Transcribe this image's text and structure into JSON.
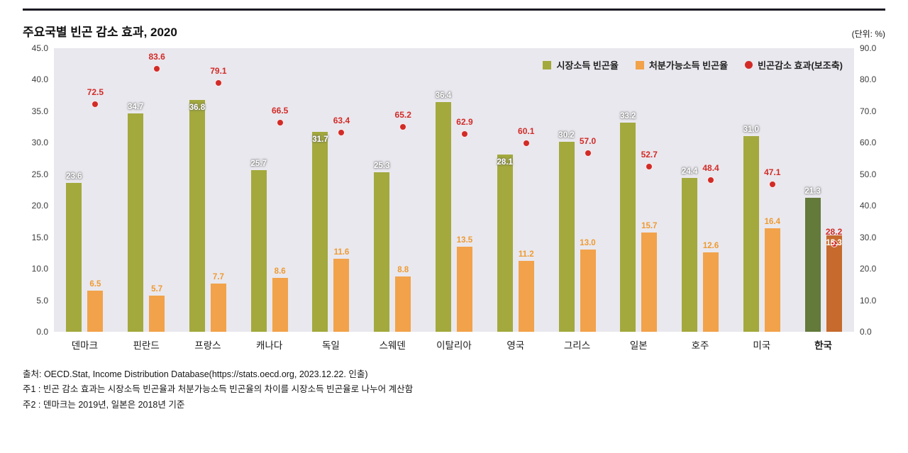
{
  "page": {
    "title": "주요국별 빈곤 감소 효과, 2020",
    "unit_label": "(단위: %)"
  },
  "legend": [
    {
      "label": "시장소득 빈곤율",
      "color": "#a3a93c",
      "shape": "square"
    },
    {
      "label": "처분가능소득 빈곤율",
      "color": "#f2a24a",
      "shape": "square"
    },
    {
      "label": "빈곤감소 효과(보조축)",
      "color": "#d22b27",
      "shape": "circle"
    }
  ],
  "chart_data": {
    "type": "bar",
    "subtype": "grouped-bars-with-scatter-on-secondary-axis",
    "title": "주요국별 빈곤 감소 효과, 2020",
    "unit": "%",
    "categories": [
      "덴마크",
      "핀란드",
      "프랑스",
      "캐나다",
      "독일",
      "스웨덴",
      "이탈리아",
      "영국",
      "그리스",
      "일본",
      "호주",
      "미국",
      "한국"
    ],
    "series": [
      {
        "name": "시장소득 빈곤율",
        "type": "bar",
        "axis": "left",
        "values": [
          23.6,
          34.7,
          36.8,
          25.7,
          31.7,
          25.3,
          36.4,
          28.1,
          30.2,
          33.2,
          24.4,
          31.0,
          21.3
        ]
      },
      {
        "name": "처분가능소득 빈곤율",
        "type": "bar",
        "axis": "left",
        "values": [
          6.5,
          5.7,
          7.7,
          8.6,
          11.6,
          8.8,
          13.5,
          11.2,
          13.0,
          15.7,
          12.6,
          16.4,
          15.3
        ]
      },
      {
        "name": "빈곤감소 효과(보조축)",
        "type": "scatter",
        "axis": "right",
        "values": [
          72.5,
          83.6,
          79.1,
          66.5,
          63.4,
          65.2,
          62.9,
          60.1,
          57.0,
          52.7,
          48.4,
          47.1,
          28.2
        ]
      }
    ],
    "left_axis": {
      "min": 0,
      "max": 45,
      "ticks": [
        "45.0",
        "40.0",
        "35.0",
        "30.0",
        "25.0",
        "20.0",
        "15.0",
        "10.0",
        "5.0",
        "0.0"
      ]
    },
    "right_axis": {
      "min": 0,
      "max": 90,
      "ticks": [
        "90.0",
        "80.0",
        "70.0",
        "60.0",
        "50.0",
        "40.0",
        "30.0",
        "20.0",
        "10.0",
        "0.0"
      ]
    },
    "highlight_category": "한국",
    "colors": {
      "market_bar": "#a3a93c",
      "disposable_bar": "#f2a24a",
      "effect_dot": "#d22b27",
      "korea_market_bar": "#637a3b",
      "korea_disposable_bar": "#c66a2d",
      "plot_background": "#e9e8ee",
      "market_label": "#ffffff",
      "disposable_label": "#ee9a32",
      "effect_label": "#d22b27"
    },
    "label_layout": {
      "market_inside_indices": [
        2,
        4,
        7
      ],
      "disposable_inside_indices": [
        12
      ]
    },
    "legend_position": "top-right-inside",
    "grid": "off"
  },
  "footer": {
    "source": "출처: OECD.Stat, Income Distribution Database(https://stats.oecd.org, 2023.12.22. 인출)",
    "note1": "주1 : 빈곤 감소 효과는 시장소득 빈곤율과 처분가능소득 빈곤율의 차이를 시장소득 빈곤율로 나누어 계산함",
    "note2": "주2 : 덴마크는 2019년, 일본은 2018년 기준"
  }
}
